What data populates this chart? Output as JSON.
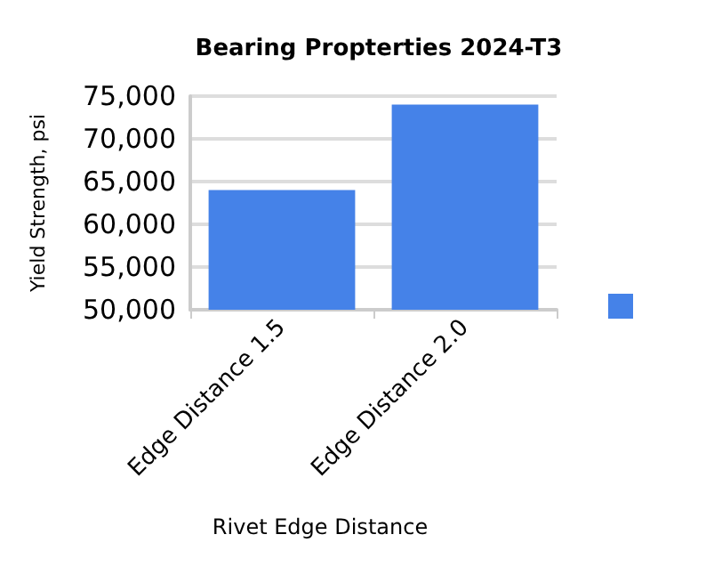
{
  "chart_data": {
    "type": "bar",
    "title": "Bearing Propterties 2024-T3",
    "xlabel": "Rivet Edge Distance",
    "ylabel": "Yield Strength, psi",
    "categories": [
      "Edge Distance 1.5",
      "Edge Distance 2.0"
    ],
    "series": [
      {
        "color": "#4582e8",
        "values": [
          64000,
          74000
        ]
      }
    ],
    "ylim": [
      50000,
      75000
    ],
    "yticks": [
      {
        "value": 50000,
        "label": "50,000"
      },
      {
        "value": 55000,
        "label": "55,000"
      },
      {
        "value": 60000,
        "label": "60,000"
      },
      {
        "value": 65000,
        "label": "65,000"
      },
      {
        "value": 70000,
        "label": "70,000"
      },
      {
        "value": 75000,
        "label": "75,000"
      }
    ],
    "grid": "y"
  }
}
